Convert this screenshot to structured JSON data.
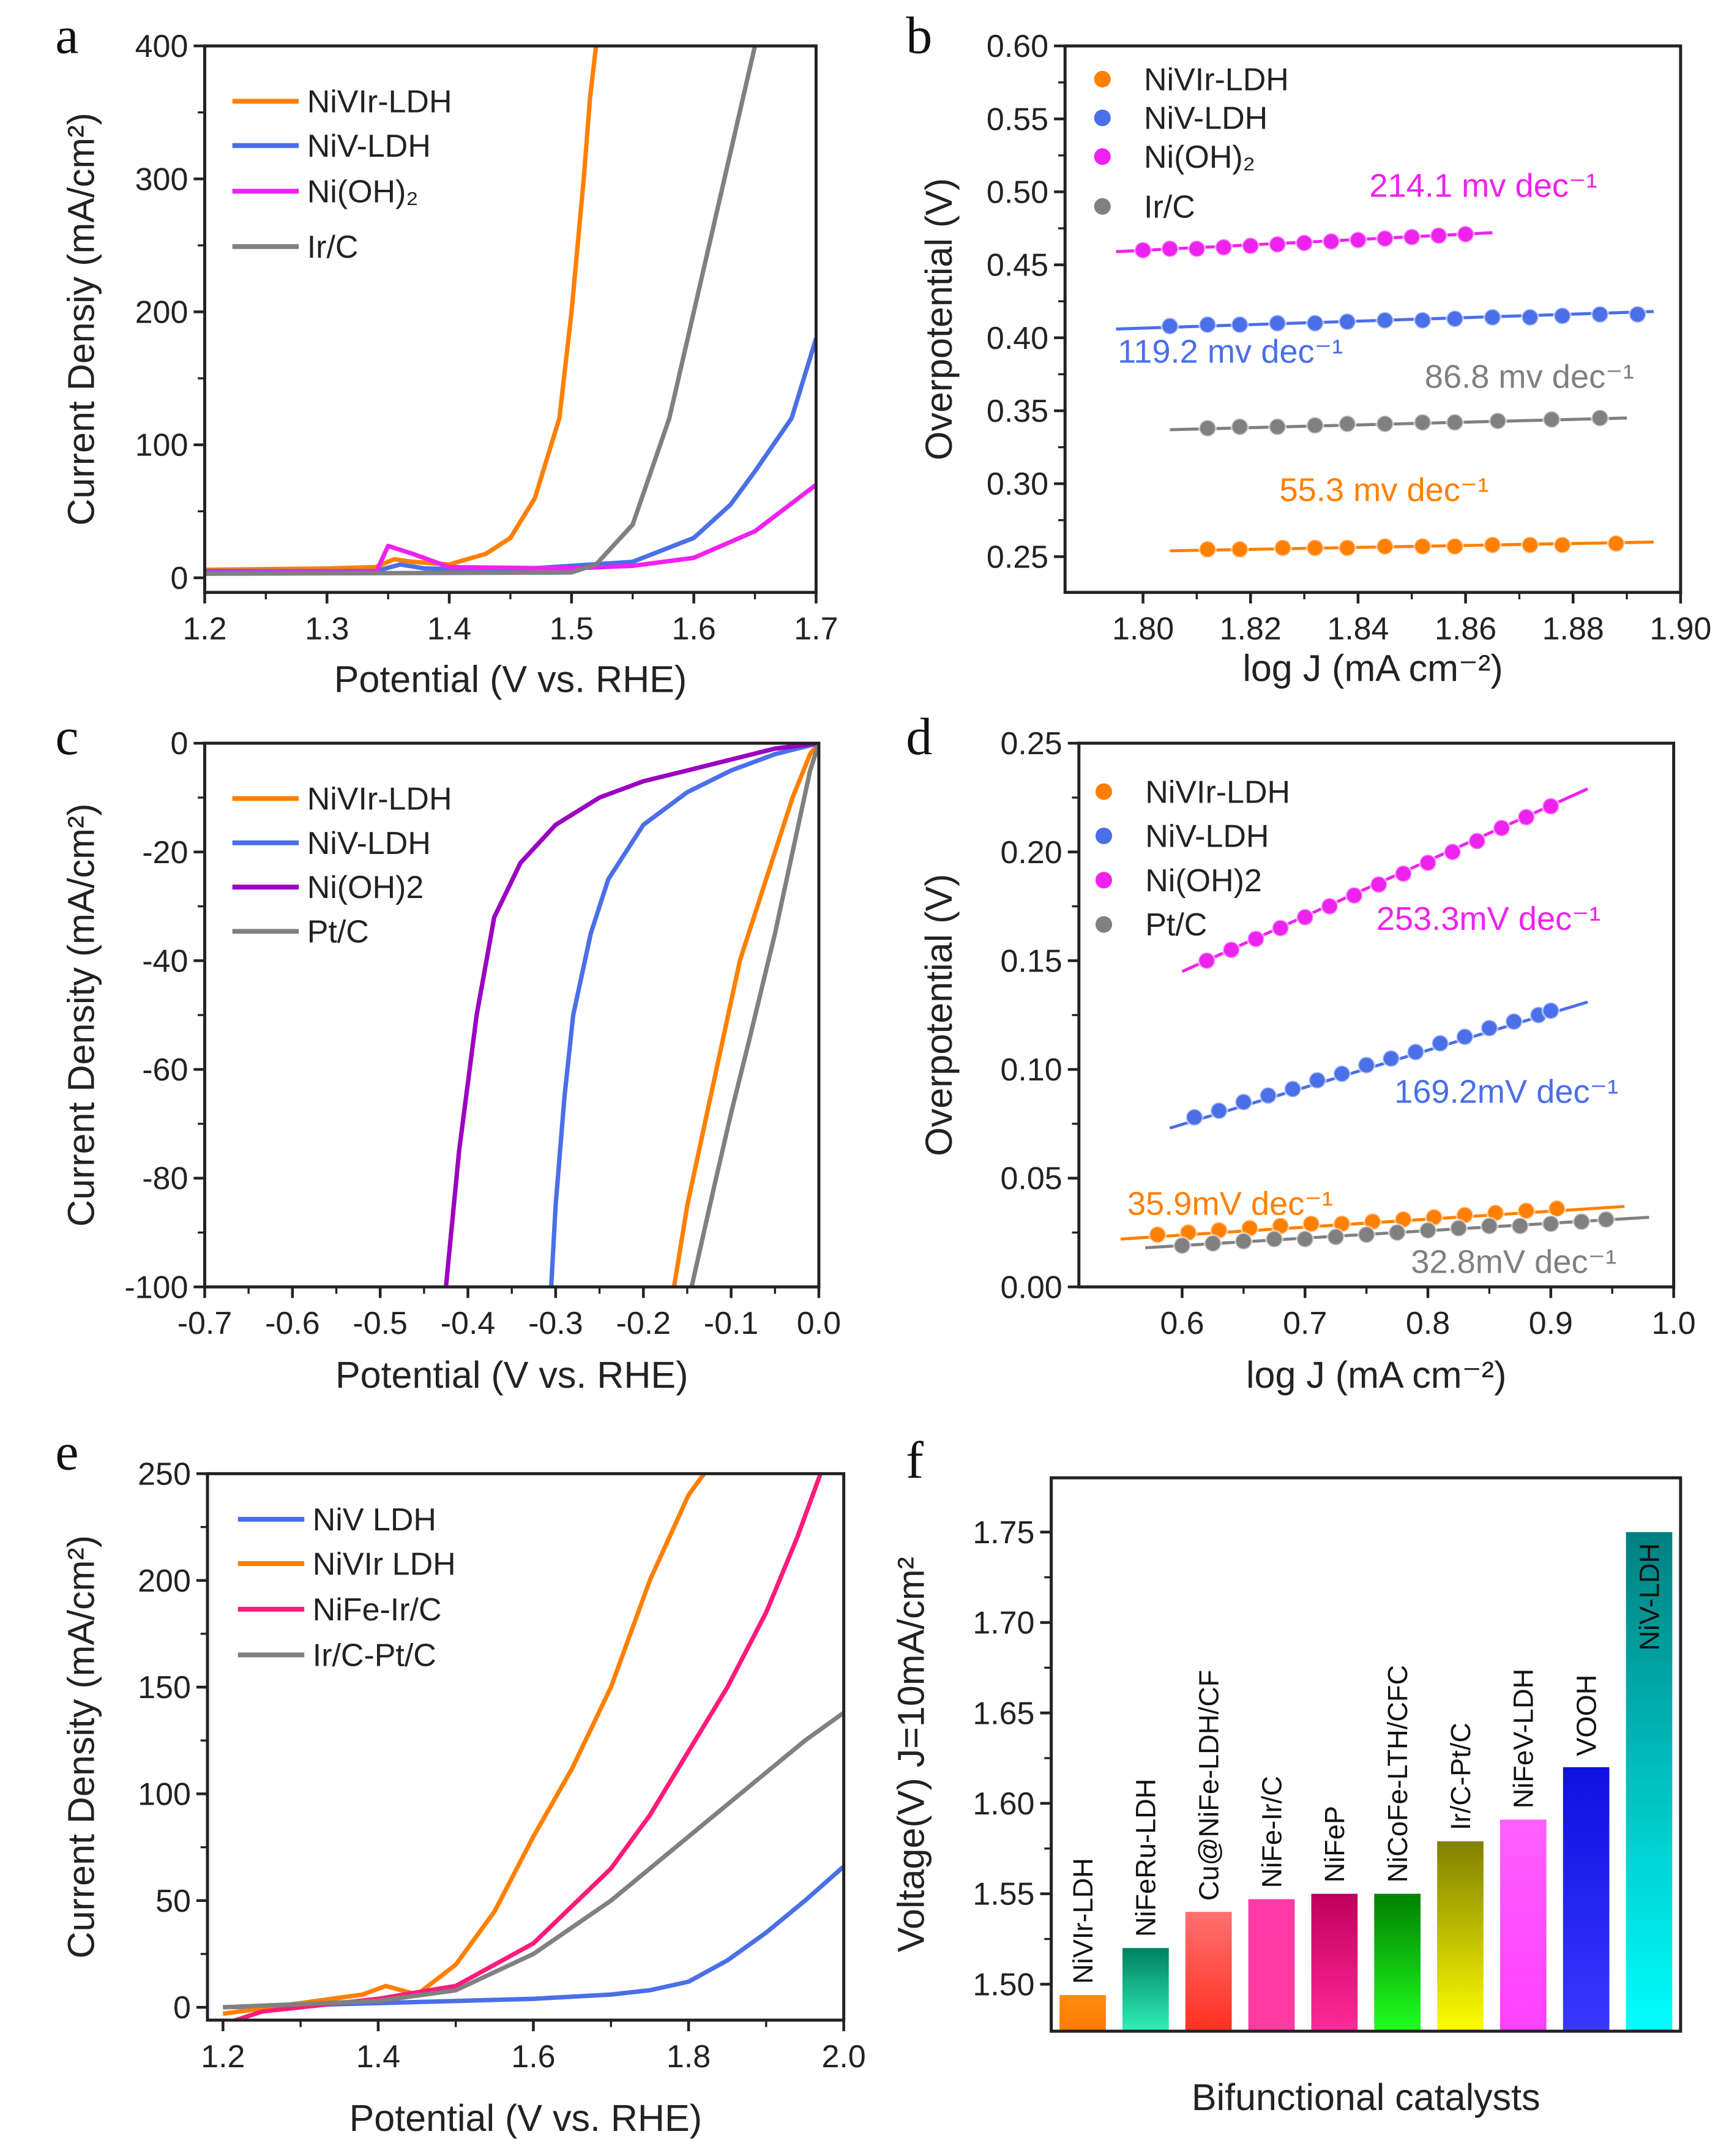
{
  "chart_data": [
    {
      "panel": "a",
      "type": "line",
      "xlabel": "Potential (V vs. RHE)",
      "ylabel": "Current Densiy (mA/cm²)",
      "xlim": [
        1.2,
        1.7
      ],
      "ylim": [
        -11,
        400
      ],
      "xticks": [
        1.2,
        1.3,
        1.4,
        1.5,
        1.6,
        1.7
      ],
      "xtick_labels": [
        "1.2",
        "1.3",
        "1.4",
        "1.5",
        "1.6",
        "1.7"
      ],
      "yticks": [
        0,
        100,
        200,
        300,
        400
      ],
      "ytick_labels": [
        "0",
        "100",
        "200",
        "300",
        "400"
      ],
      "legend": "top-left",
      "series": [
        {
          "name": "NiVIr-LDH",
          "color": "#ff8000",
          "x": [
            1.2,
            1.3,
            1.34,
            1.355,
            1.37,
            1.4,
            1.43,
            1.45,
            1.47,
            1.49,
            1.5,
            1.51,
            1.515,
            1.52
          ],
          "y": [
            6,
            7,
            8,
            14,
            12,
            10,
            18,
            30,
            60,
            120,
            200,
            300,
            360,
            400
          ]
        },
        {
          "name": "NiV-LDH",
          "color": "#4a6fe8",
          "x": [
            1.2,
            1.34,
            1.36,
            1.38,
            1.45,
            1.55,
            1.6,
            1.63,
            1.65,
            1.68,
            1.7
          ],
          "y": [
            5,
            5,
            10,
            7,
            6,
            12,
            30,
            55,
            80,
            120,
            180
          ]
        },
        {
          "name": "Ni(OH)₂",
          "color": "#ee22ee",
          "x": [
            1.2,
            1.34,
            1.35,
            1.37,
            1.4,
            1.5,
            1.55,
            1.6,
            1.65,
            1.7
          ],
          "y": [
            4,
            4,
            24,
            18,
            8,
            7,
            9,
            15,
            35,
            70
          ]
        },
        {
          "name": "Ir/C",
          "color": "#808080",
          "x": [
            1.2,
            1.5,
            1.52,
            1.55,
            1.58,
            1.6,
            1.62,
            1.65
          ],
          "y": [
            3,
            4,
            10,
            40,
            120,
            200,
            280,
            400
          ]
        }
      ]
    },
    {
      "panel": "b",
      "type": "scatter",
      "xlabel": "log J (mA cm⁻²)",
      "ylabel": "Overpotential (V)",
      "xlim": [
        1.7855,
        1.9
      ],
      "ylim": [
        0.2255,
        0.6
      ],
      "xticks": [
        1.8,
        1.82,
        1.84,
        1.86,
        1.88,
        1.9
      ],
      "xtick_labels": [
        "1.80",
        "1.82",
        "1.84",
        "1.86",
        "1.88",
        "1.90"
      ],
      "yticks": [
        0.25,
        0.3,
        0.35,
        0.4,
        0.45,
        0.5,
        0.55,
        0.6
      ],
      "ytick_labels": [
        "0.25",
        "0.30",
        "0.35",
        "0.40",
        "0.45",
        "0.50",
        "0.55",
        "0.60"
      ],
      "legend": "top-left",
      "series": [
        {
          "name": "NiVIr-LDH",
          "color": "#ff8000",
          "x": [
            1.812,
            1.818,
            1.826,
            1.832,
            1.838,
            1.845,
            1.852,
            1.858,
            1.865,
            1.872,
            1.878,
            1.888
          ],
          "y": [
            0.255,
            0.255,
            0.256,
            0.256,
            0.256,
            0.257,
            0.257,
            0.257,
            0.258,
            0.258,
            0.258,
            0.259
          ],
          "fit": [
            1.805,
            0.254,
            1.895,
            0.26
          ],
          "annotation": "55.3 mv dec⁻¹"
        },
        {
          "name": "NiV-LDH",
          "color": "#4a6fe8",
          "x": [
            1.805,
            1.812,
            1.818,
            1.825,
            1.832,
            1.838,
            1.845,
            1.852,
            1.858,
            1.865,
            1.872,
            1.878,
            1.885,
            1.892
          ],
          "y": [
            0.408,
            0.409,
            0.409,
            0.41,
            0.41,
            0.411,
            0.412,
            0.412,
            0.413,
            0.414,
            0.414,
            0.415,
            0.416,
            0.416
          ],
          "fit": [
            1.795,
            0.406,
            1.895,
            0.418
          ],
          "annotation": "119.2 mv dec⁻¹"
        },
        {
          "name": "Ni(OH)₂",
          "color": "#ee22ee",
          "x": [
            1.8,
            1.805,
            1.81,
            1.815,
            1.82,
            1.825,
            1.83,
            1.835,
            1.84,
            1.845,
            1.85,
            1.855,
            1.86
          ],
          "y": [
            0.46,
            0.461,
            0.461,
            0.462,
            0.463,
            0.464,
            0.465,
            0.466,
            0.467,
            0.468,
            0.469,
            0.47,
            0.471
          ],
          "fit": [
            1.795,
            0.459,
            1.865,
            0.472
          ],
          "annotation": "214.1 mv dec⁻¹"
        },
        {
          "name": "Ir/C",
          "color": "#808080",
          "x": [
            1.812,
            1.818,
            1.825,
            1.832,
            1.838,
            1.845,
            1.852,
            1.858,
            1.866,
            1.876,
            1.885
          ],
          "y": [
            0.338,
            0.339,
            0.339,
            0.34,
            0.341,
            0.341,
            0.342,
            0.342,
            0.343,
            0.344,
            0.345
          ],
          "fit": [
            1.805,
            0.337,
            1.89,
            0.345
          ],
          "annotation": "86.8 mv dec⁻¹"
        }
      ]
    },
    {
      "panel": "c",
      "type": "line",
      "xlabel": "Potential (V vs. RHE)",
      "ylabel": "Current Density (mA/cm²)",
      "xlim": [
        -0.7,
        0
      ],
      "ylim": [
        -100,
        0
      ],
      "xticks": [
        -0.7,
        -0.6,
        -0.5,
        -0.4,
        -0.3,
        -0.2,
        -0.1,
        0
      ],
      "xtick_labels": [
        "-0.7",
        "-0.6",
        "-0.5",
        "-0.4",
        "-0.3",
        "-0.2",
        "-0.1",
        "0.0"
      ],
      "yticks": [
        -100,
        -80,
        -60,
        -40,
        -20,
        0
      ],
      "ytick_labels": [
        "-100",
        "-80",
        "-60",
        "-40",
        "-20",
        "0"
      ],
      "legend": "top-left",
      "series": [
        {
          "name": "NiVIr-LDH",
          "color": "#ff8000",
          "x": [
            0,
            -0.01,
            -0.03,
            -0.06,
            -0.09,
            -0.11,
            -0.13,
            -0.15,
            -0.165
          ],
          "y": [
            0,
            -2,
            -10,
            -25,
            -40,
            -55,
            -70,
            -85,
            -100
          ]
        },
        {
          "name": "NiV-LDH",
          "color": "#4a6fe8",
          "x": [
            0,
            -0.05,
            -0.1,
            -0.15,
            -0.2,
            -0.24,
            -0.26,
            -0.28,
            -0.29,
            -0.3,
            -0.305
          ],
          "y": [
            0,
            -2,
            -5,
            -9,
            -15,
            -25,
            -35,
            -50,
            -65,
            -85,
            -100
          ]
        },
        {
          "name": "Ni(OH)2",
          "color": "#9b00c0",
          "x": [
            0,
            -0.05,
            -0.1,
            -0.15,
            -0.2,
            -0.25,
            -0.3,
            -0.34,
            -0.37,
            -0.39,
            -0.41,
            -0.425
          ],
          "y": [
            0,
            -1,
            -3,
            -5,
            -7,
            -10,
            -15,
            -22,
            -32,
            -50,
            -75,
            -100
          ]
        },
        {
          "name": "Pt/C",
          "color": "#808080",
          "x": [
            0,
            -0.01,
            -0.03,
            -0.05,
            -0.08,
            -0.1,
            -0.12,
            -0.145
          ],
          "y": [
            0,
            -5,
            -20,
            -35,
            -55,
            -68,
            -82,
            -100
          ]
        }
      ]
    },
    {
      "panel": "d",
      "type": "scatter",
      "xlabel": "log  J (mA cm⁻²)",
      "ylabel": "Overpotential (V)",
      "xlim": [
        0.516,
        1.0
      ],
      "ylim": [
        0,
        0.25
      ],
      "xticks": [
        0.6,
        0.7,
        0.8,
        0.9,
        1.0
      ],
      "xtick_labels": [
        "0.6",
        "0.7",
        "0.8",
        "0.9",
        "1.0"
      ],
      "yticks": [
        0,
        0.05,
        0.1,
        0.15,
        0.2,
        0.25
      ],
      "ytick_labels": [
        "0.00",
        "0.05",
        "0.10",
        "0.15",
        "0.20",
        "0.25"
      ],
      "legend": "top-left",
      "series": [
        {
          "name": "NiVIr-LDH",
          "color": "#ff8000",
          "x": [
            0.58,
            0.605,
            0.63,
            0.655,
            0.68,
            0.705,
            0.73,
            0.755,
            0.78,
            0.805,
            0.83,
            0.855,
            0.88,
            0.905
          ],
          "y": [
            0.024,
            0.025,
            0.026,
            0.027,
            0.028,
            0.029,
            0.029,
            0.03,
            0.031,
            0.032,
            0.033,
            0.034,
            0.035,
            0.036
          ],
          "fit": [
            0.55,
            0.022,
            0.96,
            0.037
          ],
          "annotation": "35.9mV dec⁻¹"
        },
        {
          "name": "NiV-LDH",
          "color": "#4a6fe8",
          "x": [
            0.61,
            0.63,
            0.65,
            0.67,
            0.69,
            0.71,
            0.73,
            0.75,
            0.77,
            0.79,
            0.81,
            0.83,
            0.85,
            0.87,
            0.89,
            0.9
          ],
          "y": [
            0.078,
            0.081,
            0.085,
            0.088,
            0.091,
            0.095,
            0.098,
            0.102,
            0.105,
            0.108,
            0.112,
            0.115,
            0.119,
            0.122,
            0.125,
            0.127
          ],
          "fit": [
            0.59,
            0.073,
            0.93,
            0.131
          ],
          "annotation": "169.2mV dec⁻¹"
        },
        {
          "name": "Ni(OH)2",
          "color": "#ee22ee",
          "x": [
            0.62,
            0.64,
            0.66,
            0.68,
            0.7,
            0.72,
            0.74,
            0.76,
            0.78,
            0.8,
            0.82,
            0.84,
            0.86,
            0.88,
            0.9
          ],
          "y": [
            0.15,
            0.155,
            0.16,
            0.165,
            0.17,
            0.175,
            0.18,
            0.185,
            0.19,
            0.195,
            0.2,
            0.205,
            0.211,
            0.216,
            0.221
          ],
          "fit": [
            0.6,
            0.145,
            0.93,
            0.229
          ],
          "annotation": "253.3mV dec⁻¹"
        },
        {
          "name": "Pt/C",
          "color": "#808080",
          "x": [
            0.6,
            0.625,
            0.65,
            0.675,
            0.7,
            0.725,
            0.75,
            0.775,
            0.8,
            0.825,
            0.85,
            0.875,
            0.9,
            0.925,
            0.945
          ],
          "y": [
            0.019,
            0.02,
            0.021,
            0.022,
            0.022,
            0.023,
            0.024,
            0.025,
            0.026,
            0.027,
            0.028,
            0.028,
            0.029,
            0.03,
            0.031
          ],
          "fit": [
            0.57,
            0.018,
            0.98,
            0.032
          ],
          "annotation": "32.8mV dec⁻¹"
        }
      ]
    },
    {
      "panel": "e",
      "type": "line",
      "xlabel": "Potential  (V vs. RHE)",
      "ylabel": "Current Density (mA/cm²)",
      "xlim": [
        1.18,
        2.0
      ],
      "ylim": [
        -6,
        250
      ],
      "xticks": [
        1.2,
        1.4,
        1.6,
        1.8,
        2.0
      ],
      "xtick_labels": [
        "1.2",
        "1.4",
        "1.6",
        "1.8",
        "2.0"
      ],
      "yticks": [
        0,
        50,
        100,
        150,
        200,
        250
      ],
      "ytick_labels": [
        "0",
        "50",
        "100",
        "150",
        "200",
        "250"
      ],
      "legend": "top-left",
      "series": [
        {
          "name": "NiV LDH",
          "color": "#4a6fe8",
          "x": [
            1.2,
            1.4,
            1.6,
            1.7,
            1.75,
            1.8,
            1.85,
            1.9,
            1.95,
            2.0
          ],
          "y": [
            0,
            2,
            4,
            6,
            8,
            12,
            22,
            35,
            50,
            66
          ]
        },
        {
          "name": "NiVIr LDH",
          "color": "#ff8000",
          "x": [
            1.2,
            1.3,
            1.38,
            1.41,
            1.45,
            1.5,
            1.55,
            1.6,
            1.65,
            1.7,
            1.75,
            1.8,
            1.82
          ],
          "y": [
            -3,
            2,
            6,
            10,
            6,
            20,
            45,
            80,
            112,
            150,
            200,
            240,
            250
          ]
        },
        {
          "name": "NiFe-Ir/C",
          "color": "#ff1a7a",
          "x": [
            1.2,
            1.25,
            1.3,
            1.4,
            1.5,
            1.6,
            1.7,
            1.75,
            1.8,
            1.85,
            1.9,
            1.94,
            1.97
          ],
          "y": [
            -8,
            -2,
            0,
            4,
            10,
            30,
            65,
            90,
            120,
            150,
            185,
            220,
            250
          ]
        },
        {
          "name": "Ir/C-Pt/C",
          "color": "#808080",
          "x": [
            1.2,
            1.4,
            1.5,
            1.6,
            1.7,
            1.8,
            1.9,
            1.95,
            2.0
          ],
          "y": [
            0,
            3,
            8,
            25,
            50,
            80,
            110,
            125,
            138
          ]
        }
      ]
    },
    {
      "panel": "f",
      "type": "bar",
      "xlabel": "Bifunctional catalysts",
      "ylabel": "Voltage(V)  J=10mA/cm²",
      "ylim": [
        1.474,
        1.78
      ],
      "yticks": [
        1.5,
        1.55,
        1.6,
        1.65,
        1.7,
        1.75
      ],
      "ytick_labels": [
        "1.50",
        "1.55",
        "1.60",
        "1.65",
        "1.70",
        "1.75"
      ],
      "categories": [
        "NiVIr-LDH",
        "NiFeRu-LDH",
        "Cu@NiFe-LDH/CF",
        "NiFe-Ir/C",
        "NiFeP",
        "NiCoFe-LTH/CFC",
        "Ir/C-Pt/C",
        "NiFeV-LDH",
        "VOOH",
        "NiV-LDH"
      ],
      "values": [
        1.494,
        1.52,
        1.54,
        1.547,
        1.55,
        1.55,
        1.579,
        1.591,
        1.62,
        1.75
      ],
      "colors_top": [
        "#ff8c10",
        "#008060",
        "#ff7070",
        "#ff3aa8",
        "#c0005c",
        "#008000",
        "#808000",
        "#ff60ff",
        "#1010e0",
        "#008080"
      ],
      "colors_bottom": [
        "#ff7a00",
        "#30f0b8",
        "#ff3020",
        "#ff3aa0",
        "#ff2a98",
        "#20ff20",
        "#ffff00",
        "#ff40ff",
        "#3838ff",
        "#00ffff"
      ]
    }
  ]
}
